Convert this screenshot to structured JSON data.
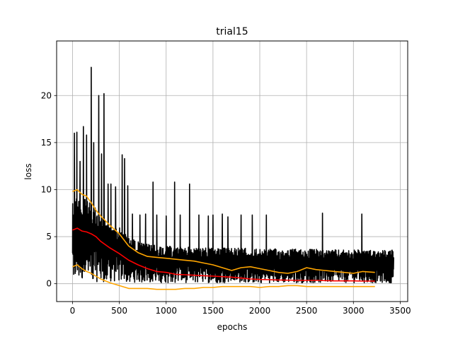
{
  "chart_data": {
    "type": "line",
    "title": "trial15",
    "xlabel": "epochs",
    "ylabel": "loss",
    "xlim": [
      -170,
      3580
    ],
    "ylim": [
      -1.9,
      25.8
    ],
    "xticks": [
      0,
      500,
      1000,
      1500,
      2000,
      2500,
      3000,
      3500
    ],
    "yticks": [
      0,
      5,
      10,
      15,
      20
    ],
    "grid": true,
    "legend": "none",
    "series": [
      {
        "kind": "raw-noisy",
        "color": "#000000",
        "x_range": [
          0,
          3430
        ],
        "baseline_envelope": {
          "x": [
            0,
            100,
            200,
            300,
            400,
            500,
            600,
            700,
            800,
            1000,
            1200,
            1500,
            1800,
            2000,
            2200,
            2500,
            2800,
            3100,
            3430
          ],
          "low": [
            0.2,
            0.2,
            0.2,
            0.2,
            0.2,
            0.15,
            0.15,
            0.15,
            0.1,
            0.1,
            0.1,
            0.1,
            0.1,
            0.1,
            0.1,
            0.1,
            0.1,
            0.1,
            0.1
          ],
          "high": [
            9.5,
            9.2,
            8.5,
            7.5,
            6.5,
            6.0,
            5.0,
            4.5,
            4.2,
            4.0,
            3.9,
            3.8,
            3.8,
            3.7,
            3.7,
            3.7,
            3.6,
            3.6,
            3.6
          ]
        },
        "spikes": [
          {
            "x": 20,
            "y": 16.0
          },
          {
            "x": 45,
            "y": 16.1
          },
          {
            "x": 80,
            "y": 13.0
          },
          {
            "x": 115,
            "y": 16.7
          },
          {
            "x": 150,
            "y": 15.8
          },
          {
            "x": 200,
            "y": 23.0
          },
          {
            "x": 225,
            "y": 15.0
          },
          {
            "x": 280,
            "y": 20.0
          },
          {
            "x": 310,
            "y": 13.8
          },
          {
            "x": 335,
            "y": 20.2
          },
          {
            "x": 380,
            "y": 10.6
          },
          {
            "x": 410,
            "y": 10.6
          },
          {
            "x": 460,
            "y": 10.3
          },
          {
            "x": 530,
            "y": 13.7
          },
          {
            "x": 555,
            "y": 13.3
          },
          {
            "x": 590,
            "y": 10.4
          },
          {
            "x": 640,
            "y": 7.4
          },
          {
            "x": 720,
            "y": 7.3
          },
          {
            "x": 780,
            "y": 7.4
          },
          {
            "x": 860,
            "y": 10.8
          },
          {
            "x": 900,
            "y": 7.3
          },
          {
            "x": 1000,
            "y": 7.2
          },
          {
            "x": 1090,
            "y": 10.8
          },
          {
            "x": 1150,
            "y": 7.3
          },
          {
            "x": 1250,
            "y": 10.6
          },
          {
            "x": 1350,
            "y": 7.3
          },
          {
            "x": 1450,
            "y": 7.2
          },
          {
            "x": 1500,
            "y": 7.3
          },
          {
            "x": 1600,
            "y": 7.4
          },
          {
            "x": 1660,
            "y": 7.1
          },
          {
            "x": 1800,
            "y": 7.3
          },
          {
            "x": 1920,
            "y": 7.3
          },
          {
            "x": 2070,
            "y": 7.3
          },
          {
            "x": 2670,
            "y": 7.5
          },
          {
            "x": 3090,
            "y": 7.4
          }
        ]
      },
      {
        "kind": "mean",
        "color": "#ff0000",
        "x": [
          0,
          50,
          100,
          150,
          200,
          250,
          300,
          400,
          500,
          600,
          700,
          800,
          900,
          1000,
          1100,
          1200,
          1300,
          1400,
          1500,
          1600,
          1700,
          1800,
          1900,
          2000,
          2200,
          2400,
          2600,
          2800,
          3000,
          3100,
          3230
        ],
        "y": [
          5.7,
          5.9,
          5.6,
          5.5,
          5.3,
          5.0,
          4.5,
          3.8,
          3.2,
          2.5,
          2.0,
          1.6,
          1.3,
          1.2,
          1.0,
          0.95,
          0.9,
          0.85,
          0.8,
          0.75,
          0.7,
          0.6,
          0.5,
          0.45,
          0.4,
          0.35,
          0.35,
          0.3,
          0.3,
          0.28,
          0.28
        ]
      },
      {
        "kind": "upper-band",
        "color": "#ffa500",
        "x": [
          0,
          50,
          100,
          150,
          200,
          250,
          300,
          400,
          500,
          600,
          700,
          800,
          900,
          1000,
          1100,
          1200,
          1300,
          1400,
          1500,
          1600,
          1700,
          1800,
          1900,
          2000,
          2100,
          2200,
          2300,
          2400,
          2500,
          2600,
          2700,
          2800,
          2900,
          3000,
          3100,
          3230
        ],
        "y": [
          9.8,
          10.0,
          9.5,
          9.3,
          8.6,
          7.8,
          7.2,
          6.2,
          5.3,
          4.0,
          3.3,
          2.9,
          2.8,
          2.7,
          2.6,
          2.5,
          2.4,
          2.2,
          2.0,
          1.7,
          1.4,
          1.7,
          1.8,
          1.6,
          1.4,
          1.2,
          1.1,
          1.3,
          1.7,
          1.5,
          1.4,
          1.3,
          1.2,
          1.1,
          1.3,
          1.2
        ]
      },
      {
        "kind": "lower-band",
        "color": "#ffa500",
        "x": [
          0,
          50,
          100,
          150,
          200,
          250,
          300,
          400,
          500,
          600,
          700,
          800,
          900,
          1000,
          1100,
          1200,
          1300,
          1400,
          1500,
          1600,
          1700,
          1800,
          1900,
          2000,
          2100,
          2200,
          2300,
          2400,
          2500,
          2600,
          2700,
          2800,
          2900,
          3000,
          3100,
          3230
        ],
        "y": [
          1.8,
          2.0,
          1.6,
          1.3,
          1.1,
          0.8,
          0.5,
          0.1,
          -0.2,
          -0.5,
          -0.5,
          -0.5,
          -0.6,
          -0.6,
          -0.6,
          -0.5,
          -0.5,
          -0.4,
          -0.4,
          -0.3,
          -0.3,
          -0.3,
          -0.3,
          -0.4,
          -0.3,
          -0.3,
          -0.2,
          -0.2,
          -0.3,
          -0.3,
          -0.3,
          -0.3,
          -0.3,
          -0.3,
          -0.3,
          -0.3
        ]
      }
    ]
  }
}
